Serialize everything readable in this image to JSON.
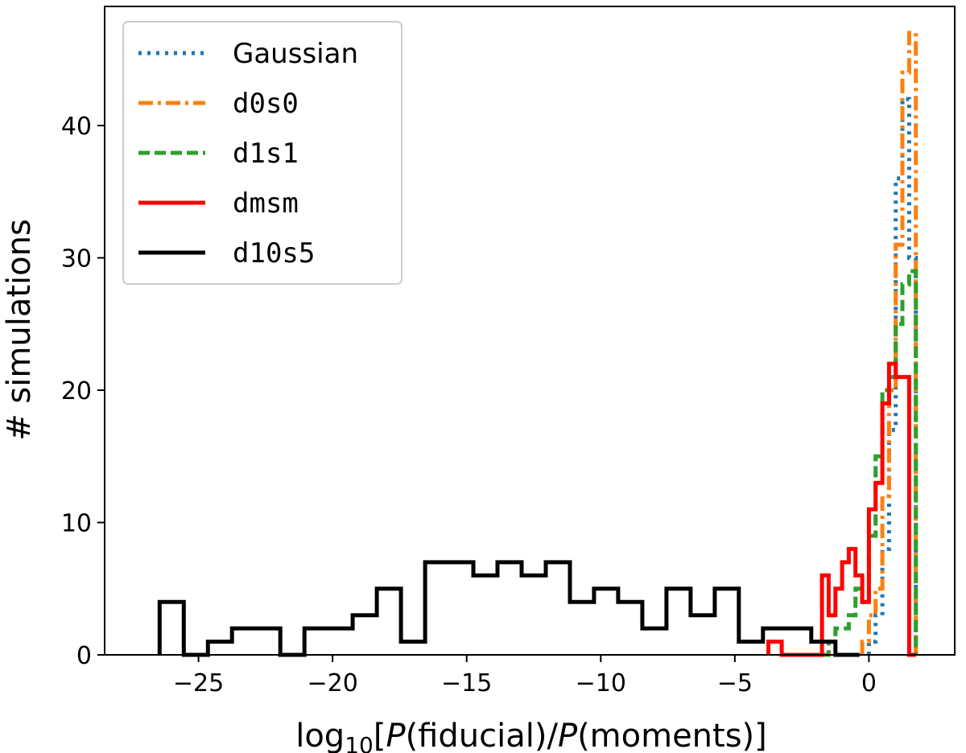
{
  "chart_data": {
    "type": "step-histogram",
    "xlabel_parts": [
      "log",
      "10",
      "[",
      "P",
      "(fiducial)/",
      "P",
      "(moments)]"
    ],
    "ylabel": "# simulations",
    "xlim": [
      -28.5,
      3.2
    ],
    "ylim": [
      0,
      49
    ],
    "xticks": [
      -25,
      -20,
      -15,
      -10,
      -5,
      0
    ],
    "xtick_labels": [
      "−25",
      "−20",
      "−15",
      "−10",
      "−5",
      "0"
    ],
    "yticks": [
      0,
      10,
      20,
      30,
      40
    ],
    "ytick_labels": [
      "0",
      "10",
      "20",
      "30",
      "40"
    ],
    "legend_position": "upper-left",
    "grid": false,
    "series": [
      {
        "name": "Gaussian",
        "color": "#1f77b4",
        "style": "dotted",
        "edges": [
          0.0,
          0.25,
          0.5,
          0.75,
          1.0,
          1.25,
          1.5,
          1.75
        ],
        "counts": [
          1,
          3,
          8,
          17,
          36,
          42,
          30
        ]
      },
      {
        "name": "d0s0",
        "color": "#ff7f0e",
        "style": "dashdot",
        "edges": [
          -0.25,
          0.0,
          0.25,
          0.5,
          0.75,
          1.0,
          1.25,
          1.5,
          1.75
        ],
        "counts": [
          1,
          3,
          5,
          12,
          20,
          31,
          44,
          47
        ]
      },
      {
        "name": "d1s1",
        "color": "#2ca02c",
        "style": "dashed",
        "edges": [
          -1.75,
          -1.5,
          -1.25,
          -1.0,
          -0.75,
          -0.5,
          -0.25,
          0.0,
          0.25,
          0.5,
          0.75,
          1.0,
          1.25,
          1.5,
          1.75
        ],
        "counts": [
          0,
          1,
          2,
          2,
          3,
          5,
          4,
          9,
          15,
          20,
          21,
          25,
          28,
          29
        ]
      },
      {
        "name": "dmsm",
        "color": "#ff0000",
        "style": "solid",
        "edges": [
          -3.75,
          -3.25,
          -2.75,
          -2.25,
          -1.75,
          -1.5,
          -1.25,
          -1.0,
          -0.75,
          -0.5,
          -0.25,
          0.0,
          0.25,
          0.5,
          0.75,
          1.0,
          1.25,
          1.5,
          1.75
        ],
        "counts": [
          1,
          0,
          0,
          0,
          6,
          3,
          5,
          7,
          8,
          6,
          4,
          11,
          13,
          19,
          22,
          21,
          21,
          0
        ]
      },
      {
        "name": "d10s5",
        "color": "#000000",
        "style": "solid",
        "edges": [
          -26.45,
          -25.55,
          -24.65,
          -23.75,
          -22.85,
          -21.95,
          -21.05,
          -20.15,
          -19.25,
          -18.35,
          -17.45,
          -16.55,
          -15.65,
          -14.75,
          -13.85,
          -12.95,
          -12.05,
          -11.15,
          -10.25,
          -9.35,
          -8.45,
          -7.55,
          -6.65,
          -5.75,
          -4.85,
          -3.95,
          -3.05,
          -2.15,
          -1.25,
          -0.35
        ],
        "counts": [
          4,
          0,
          1,
          2,
          2,
          0,
          2,
          2,
          3,
          5,
          1,
          7,
          7,
          6,
          7,
          6,
          7,
          4,
          5,
          4,
          2,
          5,
          3,
          5,
          1,
          2,
          2,
          1,
          0
        ]
      }
    ]
  }
}
